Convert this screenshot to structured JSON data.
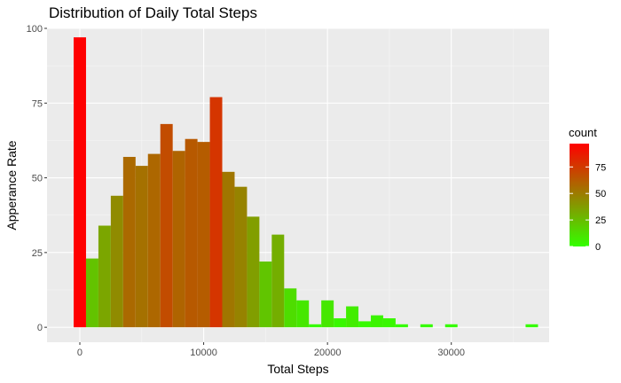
{
  "chart_data": {
    "type": "histogram",
    "title": "Distribution of Daily Total Steps",
    "xlabel": "Total Steps",
    "ylabel": "Apperance Rate",
    "bin_width": 1000,
    "xlim": [
      -2650,
      37900
    ],
    "ylim": [
      -5,
      100
    ],
    "x_ticks": [
      0,
      10000,
      20000,
      30000
    ],
    "x_tick_labels": [
      "0",
      "10000",
      "20000",
      "30000"
    ],
    "y_ticks": [
      0,
      25,
      50,
      75,
      100
    ],
    "y_tick_labels": [
      "0",
      "25",
      "50",
      "75",
      "100"
    ],
    "bins": [
      {
        "center": 0,
        "count": 97
      },
      {
        "center": 1000,
        "count": 23
      },
      {
        "center": 2000,
        "count": 34
      },
      {
        "center": 3000,
        "count": 44
      },
      {
        "center": 4000,
        "count": 57
      },
      {
        "center": 5000,
        "count": 54
      },
      {
        "center": 6000,
        "count": 58
      },
      {
        "center": 7000,
        "count": 68
      },
      {
        "center": 8000,
        "count": 59
      },
      {
        "center": 9000,
        "count": 63
      },
      {
        "center": 10000,
        "count": 62
      },
      {
        "center": 11000,
        "count": 77
      },
      {
        "center": 12000,
        "count": 52
      },
      {
        "center": 13000,
        "count": 47
      },
      {
        "center": 14000,
        "count": 37
      },
      {
        "center": 15000,
        "count": 22
      },
      {
        "center": 16000,
        "count": 31
      },
      {
        "center": 17000,
        "count": 13
      },
      {
        "center": 18000,
        "count": 9
      },
      {
        "center": 19000,
        "count": 1
      },
      {
        "center": 20000,
        "count": 9
      },
      {
        "center": 21000,
        "count": 3
      },
      {
        "center": 22000,
        "count": 7
      },
      {
        "center": 23000,
        "count": 2
      },
      {
        "center": 24000,
        "count": 4
      },
      {
        "center": 25000,
        "count": 3
      },
      {
        "center": 26000,
        "count": 1
      },
      {
        "center": 28000,
        "count": 1
      },
      {
        "center": 30000,
        "count": 1
      },
      {
        "center": 36500,
        "count": 1
      }
    ],
    "legend": {
      "title": "count",
      "position": "right",
      "labels": [
        "0",
        "25",
        "50",
        "75"
      ],
      "values": [
        0,
        25,
        50,
        75
      ],
      "range": [
        0,
        97
      ],
      "low_color": "#33ff00",
      "high_color": "#ff0000"
    },
    "colors": {
      "panel_background": "#ebebeb",
      "grid_major": "#ffffff",
      "grid_minor": "#f5f5f5"
    }
  }
}
